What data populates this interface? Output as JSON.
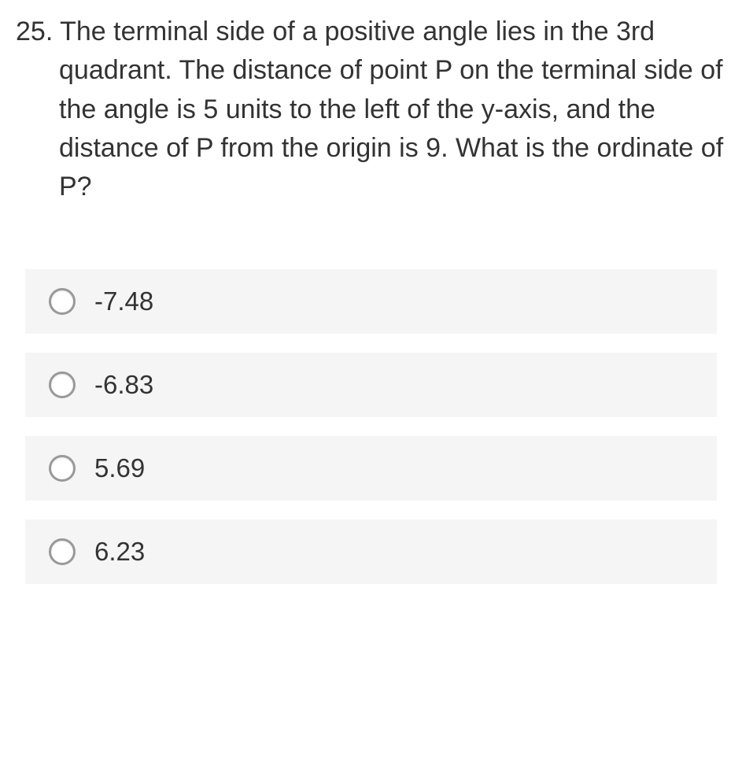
{
  "question": {
    "number": "25.",
    "text": "The terminal side of a positive angle lies in the 3rd quadrant. The distance of point P on the terminal side of the angle is 5 units to the left of the y-axis, and the distance of P from the origin is 9. What is the ordinate of P?",
    "text_color": "#333333",
    "font_size": 34
  },
  "options": [
    {
      "label": "-7.48",
      "value": "a"
    },
    {
      "label": "-6.83",
      "value": "b"
    },
    {
      "label": "5.69",
      "value": "c"
    },
    {
      "label": "6.23",
      "value": "d"
    }
  ],
  "styling": {
    "option_bg": "#f5f5f5",
    "radio_border": "#999999",
    "body_bg": "#ffffff"
  }
}
